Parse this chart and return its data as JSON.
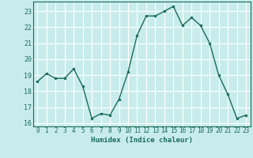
{
  "x": [
    0,
    1,
    2,
    3,
    4,
    5,
    6,
    7,
    8,
    9,
    10,
    11,
    12,
    13,
    14,
    15,
    16,
    17,
    18,
    19,
    20,
    21,
    22,
    23
  ],
  "y": [
    18.6,
    19.1,
    18.8,
    18.8,
    19.4,
    18.3,
    16.3,
    16.6,
    16.5,
    17.5,
    19.2,
    21.5,
    22.7,
    22.7,
    23.0,
    23.3,
    22.1,
    22.6,
    22.1,
    21.0,
    19.0,
    17.8,
    16.3,
    16.5
  ],
  "line_color": "#1a6b5a",
  "marker": "o",
  "markersize": 2.0,
  "linewidth": 1.0,
  "xlabel": "Humidex (Indice chaleur)",
  "ylabel": "",
  "xlim": [
    -0.5,
    23.5
  ],
  "ylim": [
    15.8,
    23.6
  ],
  "yticks": [
    16,
    17,
    18,
    19,
    20,
    21,
    22,
    23
  ],
  "xticks": [
    0,
    1,
    2,
    3,
    4,
    5,
    6,
    7,
    8,
    9,
    10,
    11,
    12,
    13,
    14,
    15,
    16,
    17,
    18,
    19,
    20,
    21,
    22,
    23
  ],
  "background_color": "#c8ecec",
  "grid_color": "#ffffff",
  "tick_color": "#1a6b5a",
  "label_color": "#1a6b5a",
  "xlabel_fontsize": 6.5,
  "tick_fontsize": 5.5
}
